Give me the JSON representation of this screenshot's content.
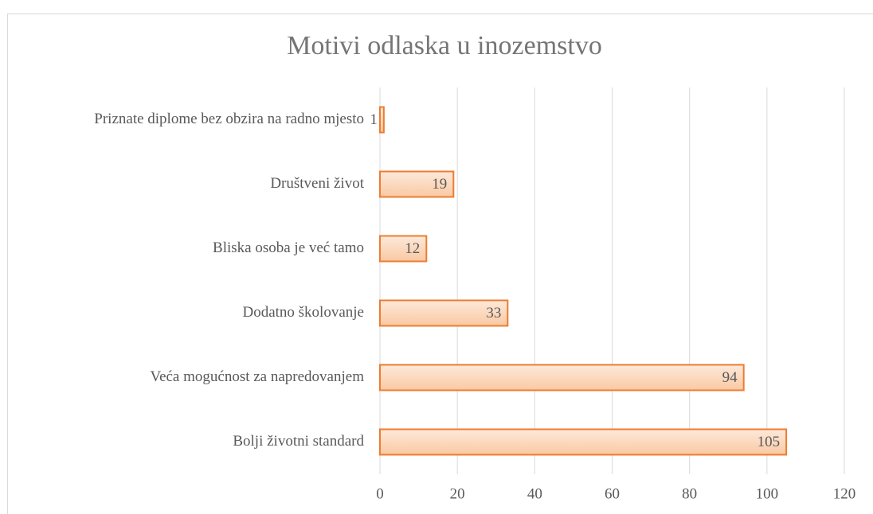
{
  "chart_data": {
    "type": "bar",
    "orientation": "horizontal",
    "title": "Motivi odlaska u inozemstvo",
    "categories": [
      "Priznate diplome bez obzira na radno mjesto",
      "Društveni život",
      "Bliska osoba je već tamo",
      "Dodatno školovanje",
      "Veća mogućnost za napredovanjem",
      "Bolji životni standard"
    ],
    "values": [
      1,
      19,
      12,
      33,
      94,
      105
    ],
    "color": "#f9c9a3",
    "edge_color": "#ed7d31",
    "xlim": [
      0,
      120
    ],
    "xticks": [
      0,
      20,
      40,
      60,
      80,
      100,
      120
    ],
    "grid": true
  }
}
